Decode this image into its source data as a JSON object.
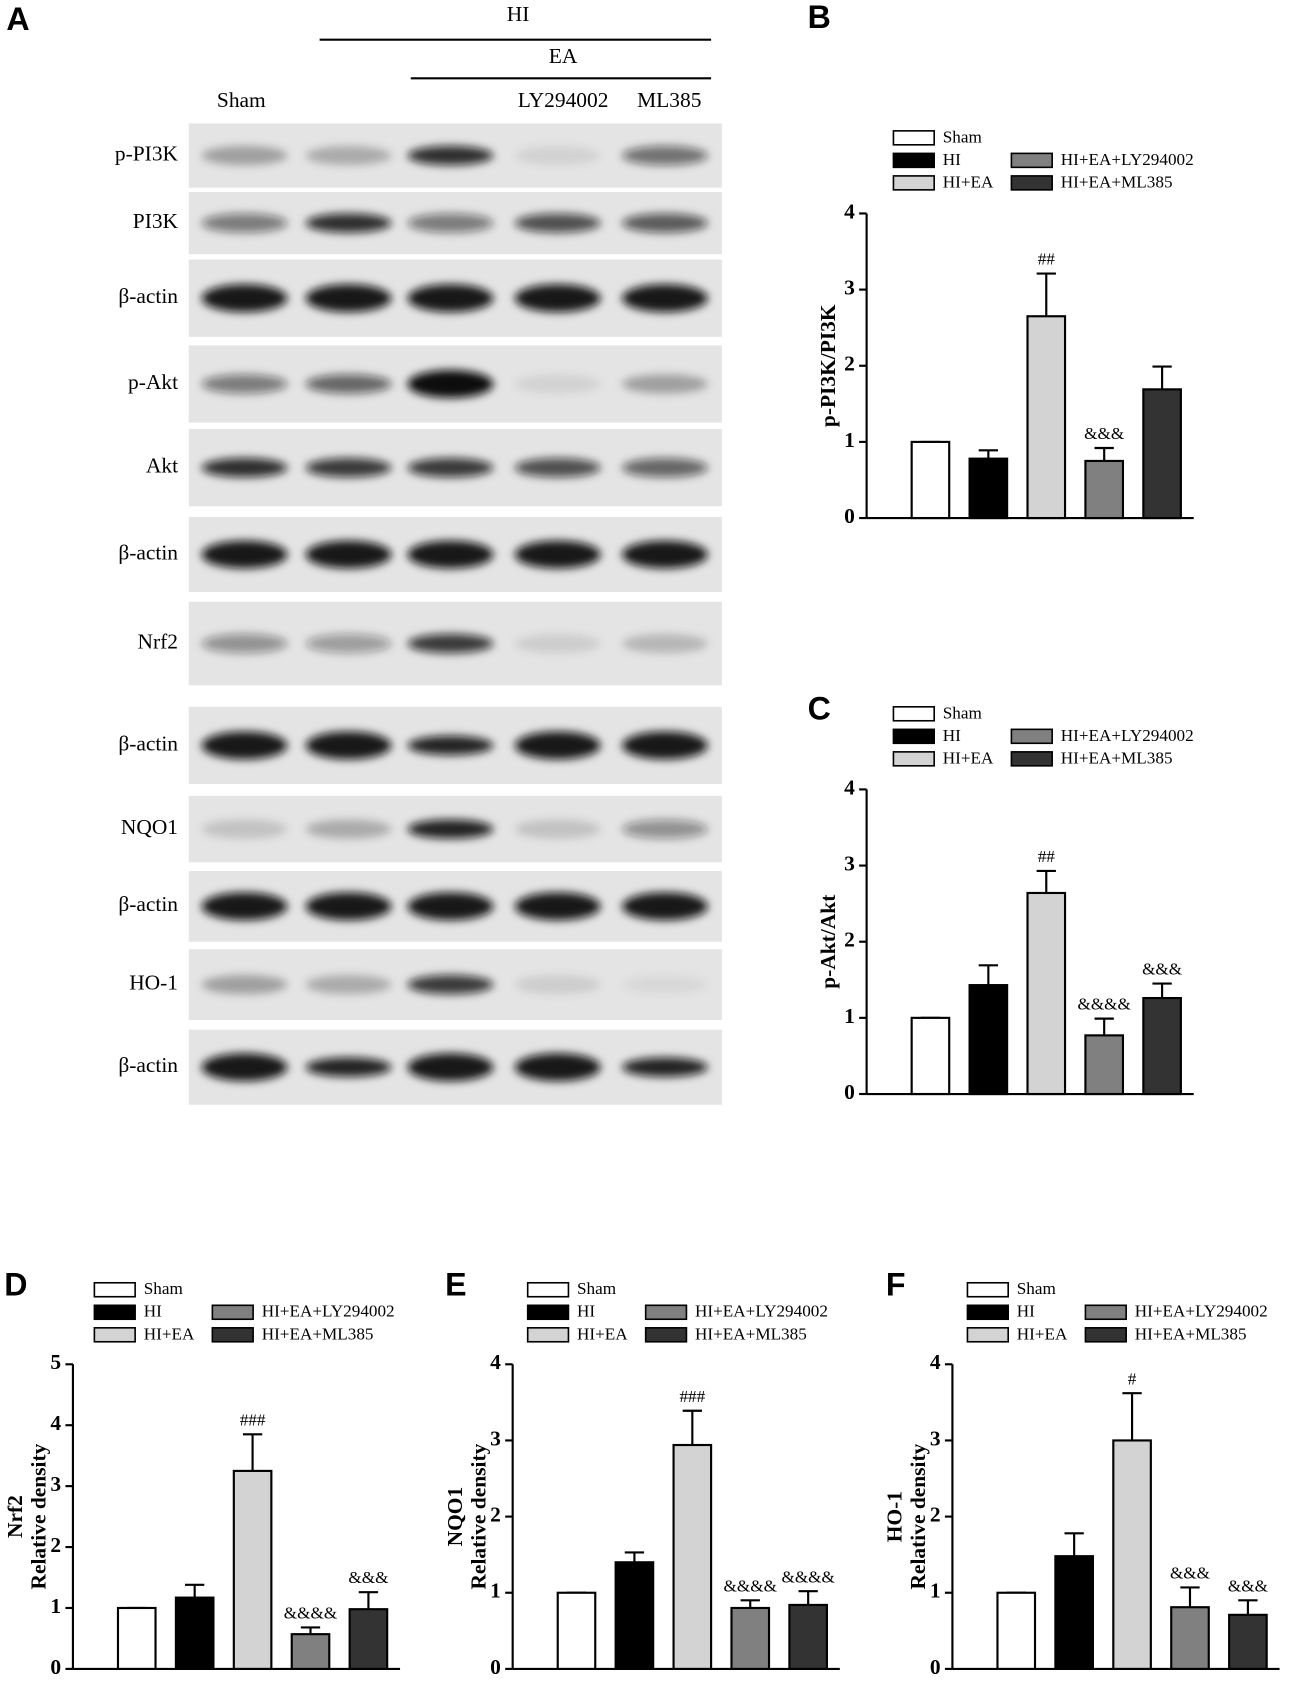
{
  "blot": {
    "panel": "A",
    "groups": [
      "HI",
      "EA"
    ],
    "lanes": [
      "Sham",
      "LY294002",
      "ML385"
    ],
    "rows": [
      "p-PI3K",
      "PI3K",
      "β-actin",
      "p-Akt",
      "Akt",
      "β-actin",
      "Nrf2",
      "β-actin",
      "NQO1",
      "β-actin",
      "HO-1",
      "β-actin"
    ]
  },
  "chart_data": [
    {
      "type": "bar",
      "panel": "B",
      "ylabel": [
        "p-PI3K/PI3K"
      ],
      "ylim": [
        0,
        4
      ],
      "yticks": [
        0,
        1,
        2,
        3,
        4
      ],
      "series": [
        {
          "name": "Sham",
          "color": "#ffffff",
          "values": [
            1
          ],
          "errors": [
            0
          ]
        },
        {
          "name": "HI",
          "color": "#000000",
          "values": [
            0.78
          ],
          "errors": [
            0.11
          ]
        },
        {
          "name": "HI+EA",
          "color": "#d3d3d3",
          "values": [
            2.65
          ],
          "errors": [
            0.56
          ],
          "annotation": "##"
        },
        {
          "name": "HI+EA+LY294002",
          "color": "#808080",
          "values": [
            0.75
          ],
          "errors": [
            0.17
          ],
          "annotation": "&&&"
        },
        {
          "name": "HI+EA+ML385",
          "color": "#333333",
          "values": [
            1.69
          ],
          "errors": [
            0.3
          ]
        }
      ]
    },
    {
      "type": "bar",
      "panel": "C",
      "ylabel": [
        "p-Akt/Akt"
      ],
      "ylim": [
        0,
        4
      ],
      "yticks": [
        0,
        1,
        2,
        3,
        4
      ],
      "series": [
        {
          "name": "Sham",
          "color": "#ffffff",
          "values": [
            1
          ],
          "errors": [
            0
          ]
        },
        {
          "name": "HI",
          "color": "#000000",
          "values": [
            1.43
          ],
          "errors": [
            0.26
          ]
        },
        {
          "name": "HI+EA",
          "color": "#d3d3d3",
          "values": [
            2.64
          ],
          "errors": [
            0.29
          ],
          "annotation": "##"
        },
        {
          "name": "HI+EA+LY294002",
          "color": "#808080",
          "values": [
            0.77
          ],
          "errors": [
            0.22
          ],
          "annotation": "&&&&"
        },
        {
          "name": "HI+EA+ML385",
          "color": "#333333",
          "values": [
            1.26
          ],
          "errors": [
            0.19
          ],
          "annotation": "&&&"
        }
      ]
    },
    {
      "type": "bar",
      "panel": "D",
      "ylabel": [
        "Nrf2",
        "Relative density"
      ],
      "ylim": [
        0,
        5
      ],
      "yticks": [
        0,
        1,
        2,
        3,
        4,
        5
      ],
      "series": [
        {
          "name": "Sham",
          "color": "#ffffff",
          "values": [
            1
          ],
          "errors": [
            0
          ]
        },
        {
          "name": "HI",
          "color": "#000000",
          "values": [
            1.17
          ],
          "errors": [
            0.21
          ]
        },
        {
          "name": "HI+EA",
          "color": "#d3d3d3",
          "values": [
            3.25
          ],
          "errors": [
            0.6
          ],
          "annotation": "###"
        },
        {
          "name": "HI+EA+LY294002",
          "color": "#808080",
          "values": [
            0.57
          ],
          "errors": [
            0.11
          ],
          "annotation": "&&&&"
        },
        {
          "name": "HI+EA+ML385",
          "color": "#333333",
          "values": [
            0.98
          ],
          "errors": [
            0.28
          ],
          "annotation": "&&&"
        }
      ]
    },
    {
      "type": "bar",
      "panel": "E",
      "ylabel": [
        "NQO1",
        "Relative density"
      ],
      "ylim": [
        0,
        4
      ],
      "yticks": [
        0,
        1,
        2,
        3,
        4
      ],
      "series": [
        {
          "name": "Sham",
          "color": "#ffffff",
          "values": [
            1
          ],
          "errors": [
            0
          ]
        },
        {
          "name": "HI",
          "color": "#000000",
          "values": [
            1.4
          ],
          "errors": [
            0.13
          ]
        },
        {
          "name": "HI+EA",
          "color": "#d3d3d3",
          "values": [
            2.94
          ],
          "errors": [
            0.45
          ],
          "annotation": "###"
        },
        {
          "name": "HI+EA+LY294002",
          "color": "#808080",
          "values": [
            0.8
          ],
          "errors": [
            0.1
          ],
          "annotation": "&&&&"
        },
        {
          "name": "HI+EA+ML385",
          "color": "#333333",
          "values": [
            0.84
          ],
          "errors": [
            0.18
          ],
          "annotation": "&&&&"
        }
      ]
    },
    {
      "type": "bar",
      "panel": "F",
      "ylabel": [
        "HO-1",
        "Relative density"
      ],
      "ylim": [
        0,
        4
      ],
      "yticks": [
        0,
        1,
        2,
        3,
        4
      ],
      "series": [
        {
          "name": "Sham",
          "color": "#ffffff",
          "values": [
            1
          ],
          "errors": [
            0
          ]
        },
        {
          "name": "HI",
          "color": "#000000",
          "values": [
            1.48
          ],
          "errors": [
            0.3
          ]
        },
        {
          "name": "HI+EA",
          "color": "#d3d3d3",
          "values": [
            3.0
          ],
          "errors": [
            0.62
          ],
          "annotation": "#"
        },
        {
          "name": "HI+EA+LY294002",
          "color": "#808080",
          "values": [
            0.81
          ],
          "errors": [
            0.26
          ],
          "annotation": "&&&"
        },
        {
          "name": "HI+EA+ML385",
          "color": "#333333",
          "values": [
            0.71
          ],
          "errors": [
            0.19
          ],
          "annotation": "&&&"
        }
      ]
    }
  ]
}
